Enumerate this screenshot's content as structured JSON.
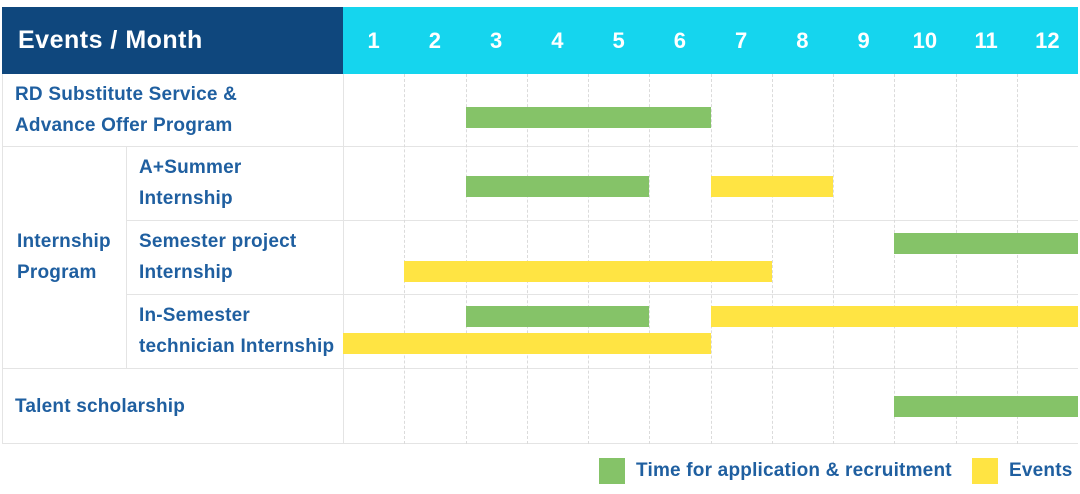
{
  "header": {
    "corner_label": "Events / Month",
    "months": [
      "1",
      "2",
      "3",
      "4",
      "5",
      "6",
      "7",
      "8",
      "9",
      "10",
      "11",
      "12"
    ]
  },
  "left_column": {
    "row1": {
      "lines": [
        "RD Substitute Service &",
        "Advance Offer Program"
      ]
    },
    "group": {
      "lines": [
        "Internship",
        "Program"
      ]
    },
    "items": [
      {
        "lines": [
          "A+Summer",
          "Internship"
        ]
      },
      {
        "lines": [
          "Semester project",
          "Internship"
        ]
      },
      {
        "lines": [
          "In-Semester",
          "technician Internship"
        ]
      }
    ],
    "row5": {
      "lines": [
        "Talent scholarship"
      ]
    }
  },
  "legend": {
    "items": [
      {
        "type": "application",
        "label": "Time for application & recruitment"
      },
      {
        "type": "event",
        "label": "Events"
      }
    ]
  },
  "colors": {
    "header_corner_bg": "#0F477D",
    "header_months_bg": "#15D5EE",
    "header_text": "#FFFFFF",
    "label_text": "#1F5FA0",
    "application": "#85C368",
    "event": "#FFE443"
  },
  "chart_data": {
    "type": "gantt",
    "title": "Events / Month",
    "x_axis": {
      "label": "Month",
      "categories": [
        1,
        2,
        3,
        4,
        5,
        6,
        7,
        8,
        9,
        10,
        11,
        12
      ]
    },
    "legend": {
      "application": "Time for application & recruitment",
      "event": "Events"
    },
    "rows": [
      {
        "name": "RD Substitute Service & Advance Offer Program",
        "bars": [
          {
            "type": "application",
            "start": 3,
            "end": 6,
            "line": 0
          }
        ]
      },
      {
        "name": "A+Summer Internship",
        "group": "Internship Program",
        "bars": [
          {
            "type": "application",
            "start": 3,
            "end": 5,
            "line": 0
          },
          {
            "type": "event",
            "start": 7,
            "end": 8,
            "line": 0
          }
        ]
      },
      {
        "name": "Semester project Internship",
        "group": "Internship Program",
        "bars": [
          {
            "type": "application",
            "start": 10,
            "end": 12,
            "line": 0
          },
          {
            "type": "event",
            "start": 2,
            "end": 7,
            "line": 1
          }
        ]
      },
      {
        "name": "In-Semester technician Internship",
        "group": "Internship Program",
        "bars": [
          {
            "type": "application",
            "start": 3,
            "end": 5,
            "line": 0
          },
          {
            "type": "event",
            "start": 7,
            "end": 12,
            "line": 0
          },
          {
            "type": "event",
            "start": 1,
            "end": 6,
            "line": 1
          }
        ]
      },
      {
        "name": "Talent scholarship",
        "bars": [
          {
            "type": "application",
            "start": 10,
            "end": 12,
            "line": 0
          }
        ]
      }
    ],
    "colors": {
      "application": "#85C368",
      "event": "#FFE443"
    }
  }
}
